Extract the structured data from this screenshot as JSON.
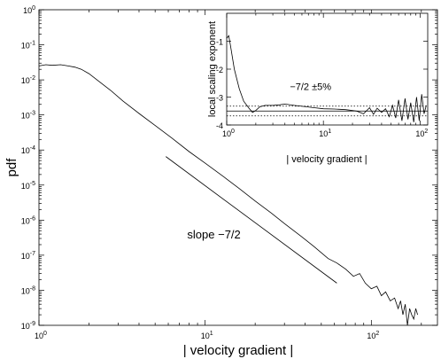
{
  "chart_data": [
    {
      "type": "line",
      "xlabel": "| velocity gradient |",
      "ylabel": "pdf",
      "xscale": "log",
      "yscale": "log",
      "xlim": [
        1,
        250
      ],
      "ylim": [
        1e-09,
        1
      ],
      "x_ticks": [
        {
          "base": "10",
          "exp": "0",
          "value": 1
        },
        {
          "base": "10",
          "exp": "1",
          "value": 10
        },
        {
          "base": "10",
          "exp": "2",
          "value": 100
        }
      ],
      "y_ticks": [
        {
          "base": "10",
          "exp": "0",
          "value": 1
        },
        {
          "base": "10",
          "exp": "-1",
          "value": 0.1
        },
        {
          "base": "10",
          "exp": "-2",
          "value": 0.01
        },
        {
          "base": "10",
          "exp": "-3",
          "value": 0.001
        },
        {
          "base": "10",
          "exp": "-4",
          "value": 0.0001
        },
        {
          "base": "10",
          "exp": "-5",
          "value": 1e-05
        },
        {
          "base": "10",
          "exp": "-6",
          "value": 1e-06
        },
        {
          "base": "10",
          "exp": "-7",
          "value": 1e-07
        },
        {
          "base": "10",
          "exp": "-8",
          "value": 1e-08
        },
        {
          "base": "10",
          "exp": "-9",
          "value": 1e-09
        }
      ],
      "series": [
        {
          "x": [
            1.0,
            1.1,
            1.2,
            1.35,
            1.5,
            1.65,
            1.8,
            2.0,
            2.3,
            2.7,
            3.2,
            4.0,
            5.0,
            6.3,
            8.0,
            10.0,
            13.0,
            16.0,
            20.0,
            25.0,
            30.0,
            38.0,
            45.0,
            55.0,
            62.0,
            70.0,
            78.0,
            85.0,
            92.0,
            100.0,
            108.0,
            115.0,
            122.0,
            130.0,
            138.0,
            145.0,
            150.0,
            155.0,
            160.0,
            165.0,
            170.0,
            175.0,
            180.0,
            185.0,
            190.0
          ],
          "y": [
            0.025,
            0.027,
            0.026,
            0.027,
            0.025,
            0.023,
            0.02,
            0.015,
            0.009,
            0.005,
            0.0025,
            0.0011,
            0.0005,
            0.00022,
            9e-05,
            4.2e-05,
            1.7e-05,
            8e-06,
            3.5e-06,
            1.6e-06,
            8e-07,
            3.4e-07,
            1.8e-07,
            8e-08,
            6e-08,
            4e-08,
            2.5e-08,
            3e-08,
            1.6e-08,
            1.1e-08,
            1.3e-08,
            7e-09,
            9e-09,
            5e-09,
            6e-09,
            3e-09,
            5e-09,
            2e-09,
            4e-09,
            1e-09,
            3e-09,
            2e-09,
            1.5e-09,
            3e-09,
            2e-09
          ]
        }
      ],
      "reference_line": {
        "x": [
          5.8,
          62
        ],
        "y": [
          6.5e-05,
          1.6e-08
        ]
      },
      "annotations": [
        {
          "text": "slope −7/2",
          "x": 7.8,
          "y": 3e-07
        }
      ]
    },
    {
      "type": "line",
      "xlabel": "| velocity gradient |",
      "ylabel": "local scaling exponent",
      "xscale": "log",
      "xlim": [
        1,
        120
      ],
      "ylim": [
        -4,
        0
      ],
      "x_ticks": [
        {
          "base": "10",
          "exp": "0",
          "value": 1
        },
        {
          "base": "10",
          "exp": "1",
          "value": 10
        },
        {
          "base": "10",
          "exp": "2",
          "value": 100
        }
      ],
      "y_ticks": [
        {
          "label": "-1",
          "value": -1
        },
        {
          "label": "-2",
          "value": -2
        },
        {
          "label": "-3",
          "value": -3
        },
        {
          "label": "-4",
          "value": -4
        }
      ],
      "series": [
        {
          "x": [
            1.0,
            1.05,
            1.1,
            1.2,
            1.35,
            1.5,
            1.7,
            1.85,
            2.0,
            2.2,
            2.5,
            3.0,
            3.5,
            4.0,
            5.0,
            6.0,
            8.0,
            10.0,
            13.0,
            17.0,
            22.0,
            26.0,
            30.0,
            33.0,
            36.0,
            40.0,
            44.0,
            48.0,
            52.0,
            56.0,
            60.0,
            65.0,
            70.0,
            75.0,
            80.0,
            86.0,
            92.0,
            98.0,
            104.0,
            110.0,
            116.0
          ],
          "y": [
            -0.9,
            -0.8,
            -1.2,
            -2.0,
            -2.7,
            -3.15,
            -3.4,
            -3.55,
            -3.48,
            -3.35,
            -3.3,
            -3.3,
            -3.28,
            -3.25,
            -3.3,
            -3.33,
            -3.38,
            -3.42,
            -3.43,
            -3.45,
            -3.5,
            -3.6,
            -3.38,
            -3.62,
            -3.4,
            -3.55,
            -3.42,
            -3.7,
            -3.3,
            -3.75,
            -3.1,
            -3.85,
            -3.05,
            -3.8,
            -3.2,
            -3.9,
            -3.0,
            -3.85,
            -2.9,
            -3.6,
            -3.3
          ]
        }
      ],
      "reference_lines": [
        {
          "y": -3.5,
          "style": "solid"
        },
        {
          "y": -3.325,
          "style": "dotted"
        },
        {
          "y": -3.675,
          "style": "dotted"
        }
      ],
      "annotations": [
        {
          "text": "−7/2 ±5%",
          "x": 4.5,
          "y": -2.75
        }
      ]
    }
  ]
}
